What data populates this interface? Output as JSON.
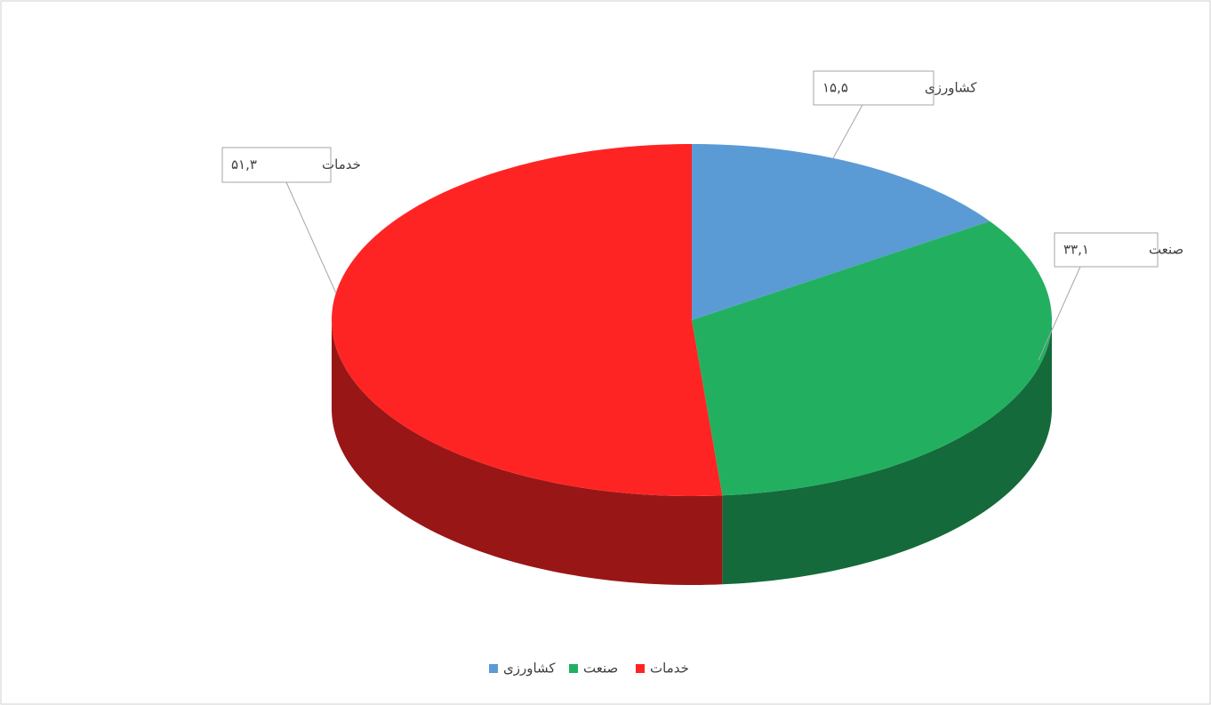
{
  "chart_data": {
    "type": "pie3d",
    "categories": [
      "کشاورزی",
      "صنعت",
      "خدمات"
    ],
    "values": [
      15.5,
      33.1,
      51.3
    ],
    "value_labels": [
      "۱۵,۵",
      "۳۳,۱",
      "۵۱,۳"
    ],
    "colors": [
      "#5b9bd5",
      "#22b060",
      "#ff2424"
    ],
    "legend": "bottom"
  }
}
